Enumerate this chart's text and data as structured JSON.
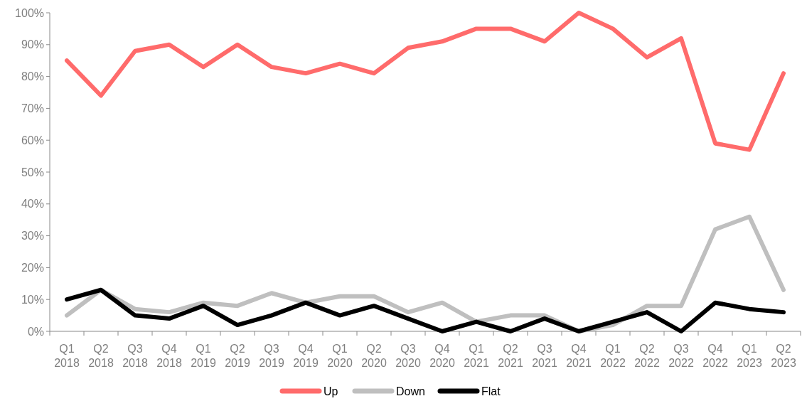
{
  "chart_data": {
    "type": "line",
    "categories": [
      "Q1 2018",
      "Q2 2018",
      "Q3 2018",
      "Q4 2018",
      "Q1 2019",
      "Q2 2019",
      "Q3 2019",
      "Q4 2019",
      "Q1 2020",
      "Q2 2020",
      "Q3 2020",
      "Q4 2020",
      "Q1 2021",
      "Q2 2021",
      "Q3 2021",
      "Q4 2021",
      "Q1 2022",
      "Q2 2022",
      "Q3 2022",
      "Q4 2022",
      "Q1 2023",
      "Q2 2023"
    ],
    "series": [
      {
        "name": "Up",
        "color": "#ff6b6b",
        "values": [
          85,
          74,
          88,
          90,
          83,
          90,
          83,
          81,
          84,
          81,
          89,
          91,
          95,
          95,
          91,
          100,
          95,
          86,
          92,
          59,
          57,
          81
        ]
      },
      {
        "name": "Down",
        "color": "#bfbfbf",
        "values": [
          5,
          13,
          7,
          6,
          9,
          8,
          12,
          9,
          11,
          11,
          6,
          9,
          3,
          5,
          5,
          0,
          2,
          8,
          8,
          32,
          36,
          13
        ]
      },
      {
        "name": "Flat",
        "color": "#000000",
        "values": [
          10,
          13,
          5,
          4,
          8,
          2,
          5,
          9,
          5,
          8,
          4,
          0,
          3,
          0,
          4,
          0,
          3,
          6,
          0,
          9,
          7,
          6
        ]
      }
    ],
    "ylim": [
      0,
      100
    ],
    "yticks": [
      {
        "value": 0,
        "label": "0%"
      },
      {
        "value": 10,
        "label": "10%"
      },
      {
        "value": 20,
        "label": "20%"
      },
      {
        "value": 30,
        "label": "30%"
      },
      {
        "value": 40,
        "label": "40%"
      },
      {
        "value": 50,
        "label": "50%"
      },
      {
        "value": 60,
        "label": "60%"
      },
      {
        "value": 70,
        "label": "70%"
      },
      {
        "value": 80,
        "label": "80%"
      },
      {
        "value": 90,
        "label": "90%"
      },
      {
        "value": 100,
        "label": "100%"
      }
    ],
    "grid": false,
    "legend": "bottom",
    "marker": "none",
    "line_style": "solid"
  }
}
